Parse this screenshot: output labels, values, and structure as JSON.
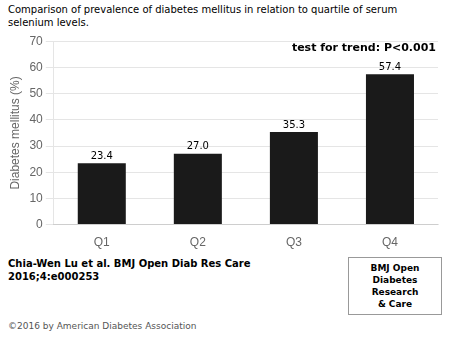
{
  "chart_data": {
    "type": "bar",
    "title": "Comparison of prevalence of diabetes mellitus in relation to quartile of serum selenium levels.",
    "categories": [
      "Q1",
      "Q2",
      "Q3",
      "Q4"
    ],
    "values": [
      23.4,
      27.0,
      35.3,
      57.4
    ],
    "value_labels": [
      "23.4",
      "27.0",
      "35.3",
      "57.4"
    ],
    "color": "#1a1a1a",
    "ylabel": "Diabetes mellitus (%)",
    "ylim": [
      0,
      70
    ],
    "yticks": [
      0,
      10,
      20,
      30,
      40,
      50,
      60,
      70
    ],
    "grid": true,
    "data_labels": true,
    "trend_text": "test for trend: P<0.001",
    "citation": [
      "Chia-Wen Lu et al. BMJ Open Diab Res Care",
      "2016;4:e000253"
    ],
    "copyright": "©2016 by American Diabetes Association",
    "journal_label": [
      "BMJ Open",
      "Diabetes",
      "Research",
      "& Care"
    ]
  }
}
